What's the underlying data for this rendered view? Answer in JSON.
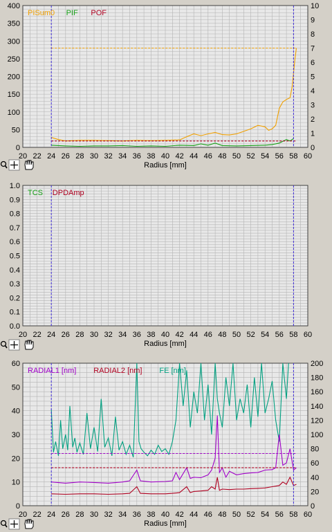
{
  "colors": {
    "panel_bg": "#e8e8e8",
    "grid": "#b4b4b4",
    "axis": "#404040",
    "marker": "#3c28d8",
    "orange": "#f0a000",
    "green": "#18a018",
    "darkred": "#b00020",
    "purple": "#a000c8",
    "teal": "#00a080"
  },
  "toolbar_icons": [
    "zoom-icon",
    "crosshair-icon",
    "hand-pan-icon"
  ],
  "chart_data": [
    {
      "type": "line",
      "xlabel": "Radius [mm]",
      "xlim": [
        20,
        60
      ],
      "xticks": [
        "20",
        "22",
        "24",
        "26",
        "28",
        "30",
        "32",
        "34",
        "36",
        "38",
        "40",
        "42",
        "44",
        "46",
        "48",
        "50",
        "52",
        "54",
        "56",
        "58",
        "60"
      ],
      "ylim": [
        0,
        400
      ],
      "yticks": [
        "0",
        "50",
        "100",
        "150",
        "200",
        "250",
        "300",
        "350",
        "400"
      ],
      "y2lim": [
        0,
        10
      ],
      "y2ticks": [
        "0",
        "1",
        "2",
        "3",
        "4",
        "5",
        "6",
        "7",
        "8",
        "9",
        "10"
      ],
      "markers_x": [
        24,
        58
      ],
      "legend": [
        {
          "name": "PISum0",
          "color": "#f0a000"
        },
        {
          "name": "PIF",
          "color": "#18a018"
        },
        {
          "name": "POF",
          "color": "#b00020"
        }
      ],
      "series": [
        {
          "name": "PISum0",
          "color": "#f0a000",
          "axis": "y",
          "x": [
            24,
            25,
            26,
            28,
            30,
            32,
            34,
            36,
            38,
            40,
            42,
            43,
            44,
            45,
            46,
            47,
            48,
            49,
            50,
            51,
            52,
            53,
            54,
            54.5,
            55,
            55.5,
            56,
            56.5,
            57,
            57.5,
            57.8,
            58,
            58.2,
            58.4
          ],
          "y": [
            28,
            22,
            18,
            20,
            20,
            19,
            18,
            20,
            19,
            20,
            21,
            30,
            38,
            33,
            38,
            42,
            36,
            35,
            38,
            45,
            52,
            62,
            58,
            48,
            52,
            62,
            110,
            128,
            135,
            140,
            170,
            210,
            250,
            280
          ]
        },
        {
          "name": "PIF",
          "color": "#18a018",
          "axis": "y",
          "x": [
            24,
            26,
            28,
            30,
            32,
            34,
            36,
            38,
            40,
            42,
            44,
            45,
            46,
            47,
            48,
            50,
            52,
            54,
            55,
            56,
            57,
            57.5,
            58
          ],
          "y": [
            6,
            4,
            3,
            4,
            4,
            5,
            3,
            4,
            3,
            6,
            5,
            10,
            6,
            12,
            5,
            4,
            5,
            6,
            8,
            12,
            22,
            18,
            25
          ]
        },
        {
          "name": "PISum0-mean",
          "color": "#f0a000",
          "axis": "y",
          "dashed": true,
          "x": [
            24,
            58.4
          ],
          "y": [
            280,
            280
          ]
        },
        {
          "name": "POF-mean",
          "color": "#b00020",
          "axis": "y",
          "dashed": true,
          "x": [
            24,
            58.4
          ],
          "y": [
            18,
            18
          ]
        }
      ]
    },
    {
      "type": "line",
      "xlabel": "Radius [mm]",
      "xlim": [
        20,
        60
      ],
      "xticks": [
        "20",
        "22",
        "24",
        "26",
        "28",
        "30",
        "32",
        "34",
        "36",
        "38",
        "40",
        "42",
        "44",
        "46",
        "48",
        "50",
        "52",
        "54",
        "56",
        "58",
        "60"
      ],
      "ylim": [
        0,
        1
      ],
      "yticks": [
        "0.0",
        "0.1",
        "0.2",
        "0.3",
        "0.4",
        "0.5",
        "0.6",
        "0.7",
        "0.8",
        "0.9",
        "1.0"
      ],
      "markers_x": [
        24,
        58
      ],
      "legend": [
        {
          "name": "TCS",
          "color": "#18a018"
        },
        {
          "name": "DPDAmp",
          "color": "#b00020"
        }
      ],
      "series": []
    },
    {
      "type": "line",
      "xlabel": "Radius [mm]",
      "xlim": [
        20,
        60
      ],
      "xticks": [
        "20",
        "22",
        "24",
        "26",
        "28",
        "30",
        "32",
        "34",
        "36",
        "38",
        "40",
        "42",
        "44",
        "46",
        "48",
        "50",
        "52",
        "54",
        "56",
        "58",
        "60"
      ],
      "ylim": [
        0,
        60
      ],
      "yticks": [
        "0",
        "10",
        "20",
        "30",
        "40",
        "50",
        "60"
      ],
      "y2lim": [
        0,
        200
      ],
      "y2ticks": [
        "0",
        "20",
        "40",
        "60",
        "80",
        "100",
        "120",
        "140",
        "160",
        "180",
        "200"
      ],
      "markers_x": [
        24,
        58
      ],
      "legend": [
        {
          "name": "RADIAL1 [nm]",
          "color": "#a000c8"
        },
        {
          "name": "RADIAL2 [nm]",
          "color": "#b00020"
        },
        {
          "name": "FE [nm]",
          "color": "#00a080"
        }
      ],
      "series": [
        {
          "name": "FE [nm]",
          "color": "#00a080",
          "axis": "y2",
          "x": [
            24,
            24.3,
            24.6,
            25,
            25.3,
            25.6,
            26,
            26.3,
            26.6,
            27,
            27.3,
            27.6,
            28,
            28.5,
            29,
            29.5,
            30,
            30.5,
            31,
            31.5,
            32,
            32.5,
            33,
            33.5,
            34,
            34.5,
            35,
            35.5,
            36,
            36.3,
            36.6,
            37,
            37.5,
            38,
            38.5,
            39,
            39.5,
            40,
            40.5,
            41,
            41.5,
            42,
            42.5,
            43,
            43.5,
            44,
            44.5,
            45,
            45.5,
            46,
            46.5,
            47,
            47.3,
            47.6,
            48,
            48.5,
            49,
            49.5,
            50,
            50.5,
            51,
            51.5,
            52,
            52.5,
            53,
            53.5,
            54,
            54.5,
            55,
            55.5,
            56,
            56.5,
            57,
            57.3
          ],
          "y": [
            135,
            75,
            90,
            70,
            120,
            80,
            100,
            78,
            140,
            82,
            95,
            75,
            88,
            72,
            130,
            80,
            110,
            76,
            150,
            82,
            95,
            70,
            125,
            78,
            90,
            72,
            85,
            68,
            200,
            90,
            80,
            75,
            70,
            78,
            72,
            85,
            76,
            80,
            72,
            90,
            120,
            200,
            140,
            190,
            110,
            160,
            130,
            200,
            120,
            170,
            100,
            200,
            150,
            130,
            110,
            180,
            140,
            200,
            120,
            150,
            130,
            170,
            110,
            180,
            125,
            200,
            130,
            150,
            175,
            120,
            90,
            200,
            150,
            200
          ]
        },
        {
          "name": "RADIAL1 [nm]",
          "color": "#a000c8",
          "axis": "y",
          "x": [
            24,
            26,
            28,
            30,
            32,
            34,
            35,
            36,
            36.5,
            38,
            40,
            41,
            41.5,
            42,
            43,
            43.5,
            44,
            45,
            46,
            46.5,
            47,
            47.3,
            47.6,
            48,
            48.5,
            49,
            50,
            51,
            52,
            53,
            54,
            55,
            55.5,
            56,
            56.5,
            57,
            57.5,
            58,
            58.4
          ],
          "y": [
            10,
            9.5,
            10,
            9.8,
            9.5,
            10,
            10.5,
            15,
            10.5,
            10,
            10.2,
            10.5,
            14,
            11,
            16,
            11.5,
            12,
            11.8,
            13,
            15,
            20,
            38,
            14,
            16,
            12,
            14.5,
            13,
            13.5,
            13.8,
            14,
            15,
            15.2,
            16,
            30,
            17,
            18,
            24,
            15,
            16
          ]
        },
        {
          "name": "RADIAL2 [nm]",
          "color": "#b00020",
          "axis": "y",
          "x": [
            24,
            26,
            28,
            30,
            32,
            34,
            35,
            36,
            36.5,
            38,
            40,
            41,
            42,
            43,
            43.5,
            44,
            45,
            46,
            46.5,
            47,
            47.3,
            47.6,
            48,
            49,
            50,
            51,
            52,
            53,
            54,
            55,
            56,
            56.5,
            57,
            57.5,
            58,
            58.4
          ],
          "y": [
            5,
            4.8,
            5,
            5,
            4.8,
            5,
            5.2,
            8,
            5.2,
            5,
            5,
            5.2,
            5.5,
            8,
            5.5,
            6,
            6.2,
            6.5,
            8,
            7,
            12,
            6.5,
            7,
            6.8,
            7,
            7,
            7.2,
            7.3,
            7.5,
            8,
            8.5,
            10,
            9,
            12,
            8.5,
            9
          ]
        },
        {
          "name": "RADIAL1-mean",
          "color": "#a000c8",
          "axis": "y",
          "dashed": true,
          "x": [
            24,
            58.4
          ],
          "y": [
            22,
            22
          ]
        },
        {
          "name": "RADIAL2-mean",
          "color": "#b00020",
          "axis": "y",
          "dashed": true,
          "x": [
            24,
            58.4
          ],
          "y": [
            16,
            16
          ]
        }
      ]
    }
  ]
}
